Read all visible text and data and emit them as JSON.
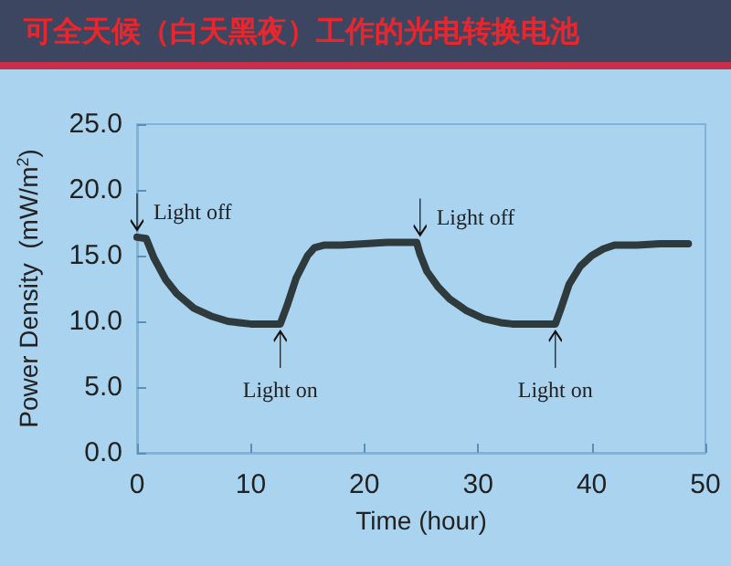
{
  "chart_data": {
    "type": "line",
    "title": "可全天候（白天黑夜）工作的光电转换电池",
    "xlabel": "Time (hour)",
    "ylabel": "Power Density  (mW/m$^{2}$)",
    "x": [
      0,
      0.8,
      1.5,
      2.5,
      3.5,
      5,
      6.5,
      8,
      9,
      10,
      11,
      12.6,
      13.2,
      14,
      15,
      15.6,
      16.5,
      18,
      20,
      22,
      24.6,
      24.9,
      25.5,
      26.5,
      27.5,
      29,
      30.5,
      32,
      33,
      35,
      36.8,
      37.3,
      38,
      39,
      40,
      41,
      42,
      44,
      46,
      48.5
    ],
    "series": [
      {
        "color": "#2f3a3c",
        "values": [
          16.4,
          16.3,
          14.8,
          13.2,
          12.1,
          11.0,
          10.4,
          10.0,
          9.9,
          9.8,
          9.8,
          9.8,
          11.2,
          13.3,
          15.0,
          15.6,
          15.8,
          15.8,
          15.9,
          16.0,
          16.0,
          15.1,
          13.8,
          12.6,
          11.7,
          10.8,
          10.2,
          9.9,
          9.8,
          9.8,
          9.8,
          11.0,
          12.8,
          14.2,
          15.0,
          15.5,
          15.8,
          15.8,
          15.9,
          15.9
        ]
      }
    ],
    "xlim": [
      0,
      50
    ],
    "xticks": [
      0,
      10,
      20,
      30,
      40,
      50
    ],
    "ylim": [
      0,
      25
    ],
    "yticks": [
      {
        "value": 0,
        "label": "0.0"
      },
      {
        "value": 5,
        "label": "5.0"
      },
      {
        "value": 10,
        "label": "10.0"
      },
      {
        "value": 15,
        "label": "15.0"
      },
      {
        "value": 20,
        "label": "20.0"
      },
      {
        "value": 25,
        "label": "25.0"
      }
    ],
    "annotations": [
      {
        "text": "Light off",
        "x": 0,
        "y": 16.4
      },
      {
        "text": "Light off",
        "x": 24.9,
        "y": 16.0
      },
      {
        "text": "Light on",
        "x": 12.6,
        "y": 9.8
      },
      {
        "text": "Light on",
        "x": 36.8,
        "y": 9.8
      }
    ],
    "grid": false,
    "marker": "none",
    "line_style": "solid"
  }
}
